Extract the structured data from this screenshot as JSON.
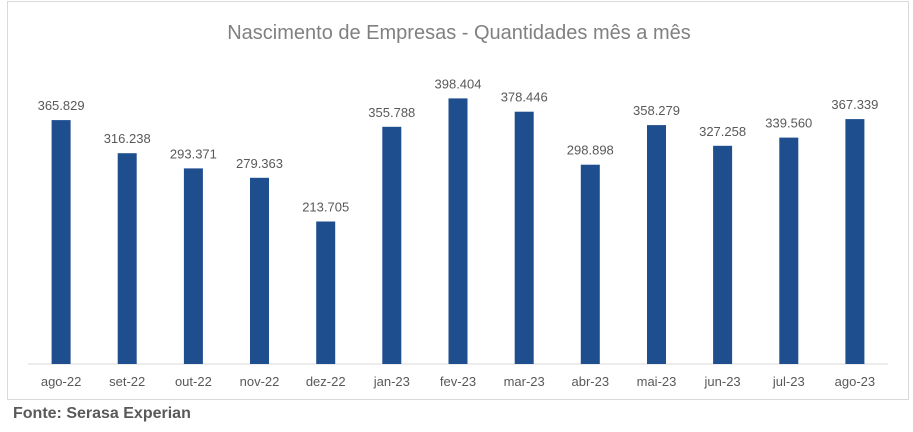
{
  "source": "Fonte: Serasa Experian",
  "colors": {
    "bar": "#1f4e8f",
    "text": "#595959",
    "title": "#808080",
    "axis": "#d9d9d9"
  },
  "chart_data": {
    "type": "bar",
    "title": "Nascimento de Empresas - Quantidades mês a mês",
    "xlabel": "",
    "ylabel": "",
    "ylim": [
      0,
      420000
    ],
    "grid": false,
    "categories": [
      "ago-22",
      "set-22",
      "out-22",
      "nov-22",
      "dez-22",
      "jan-23",
      "fev-23",
      "mar-23",
      "abr-23",
      "mai-23",
      "jun-23",
      "jul-23",
      "ago-23"
    ],
    "values": [
      365829,
      316238,
      293371,
      279363,
      213705,
      355788,
      398404,
      378446,
      298898,
      358279,
      327258,
      339560,
      367339
    ],
    "labels": [
      "365.829",
      "316.238",
      "293.371",
      "279.363",
      "213.705",
      "355.788",
      "398.404",
      "378.446",
      "298.898",
      "358.279",
      "327.258",
      "339.560",
      "367.339"
    ]
  }
}
